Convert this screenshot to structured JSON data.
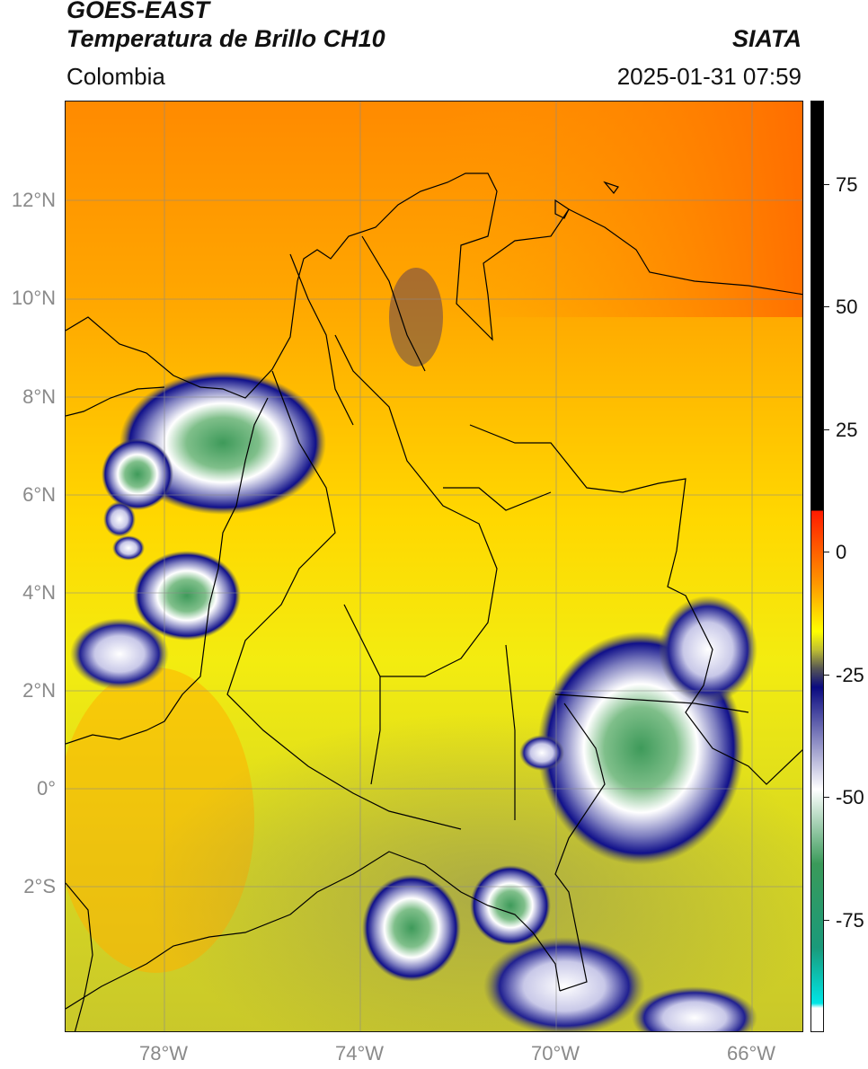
{
  "header": {
    "title_line1": "GOES-EAST",
    "title_line2": "Temperatura de Brillo CH10",
    "brand": "SIATA",
    "region": "Colombia",
    "timestamp": "2025-01-31 07:59"
  },
  "map": {
    "lat_labels": [
      "12°N",
      "10°N",
      "8°N",
      "6°N",
      "4°N",
      "2°N",
      "0°",
      "2°S"
    ],
    "lon_labels": [
      "78°W",
      "74°W",
      "70°W",
      "66°W"
    ]
  },
  "colorbar": {
    "ticks": [
      "75",
      "50",
      "25",
      "0",
      "-25",
      "-50",
      "-75"
    ],
    "colors": {
      "black": "#000000",
      "red": "#ff1a00",
      "orange": "#ff9900",
      "yellow": "#ffff00",
      "olive": "#bdbd33",
      "navy": "#0a0a80",
      "white": "#ffffff",
      "green": "#3a9a5a",
      "cyan": "#00e6e6"
    }
  }
}
